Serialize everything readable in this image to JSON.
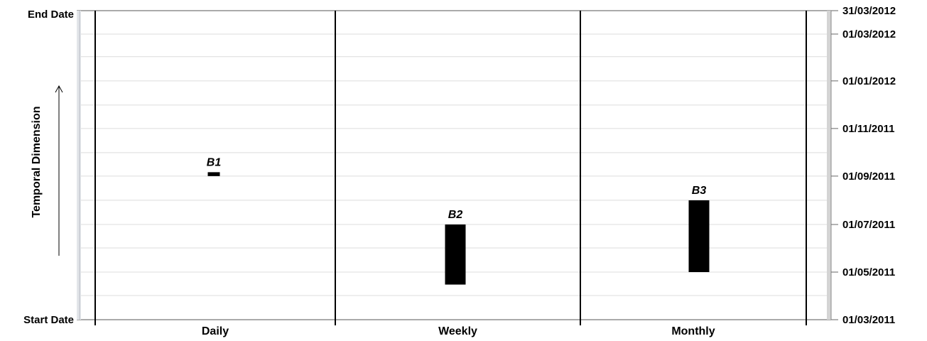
{
  "chart_data": {
    "type": "gantt",
    "title": "",
    "ylabel": "Temporal Dimension",
    "y_start_label": "Start Date",
    "y_end_label": "End Date",
    "ylim": [
      "2011-03-01",
      "2012-03-31"
    ],
    "categories": [
      "Daily",
      "Weekly",
      "Monthly"
    ],
    "y_ticks": [
      {
        "date": "2011-03-01",
        "label": "01/03/2011"
      },
      {
        "date": "2011-05-01",
        "label": "01/05/2011"
      },
      {
        "date": "2011-07-01",
        "label": "01/07/2011"
      },
      {
        "date": "2011-09-01",
        "label": "01/09/2011"
      },
      {
        "date": "2011-11-01",
        "label": "01/11/2011"
      },
      {
        "date": "2012-01-01",
        "label": "01/01/2012"
      },
      {
        "date": "2012-03-01",
        "label": "01/03/2012"
      },
      {
        "date": "2012-03-31",
        "label": "31/03/2012"
      }
    ],
    "bars": [
      {
        "label": "B1",
        "category": "Daily",
        "start": "2011-09-01",
        "end": "2011-09-06"
      },
      {
        "label": "B2",
        "category": "Weekly",
        "start": "2011-04-15",
        "end": "2011-07-01"
      },
      {
        "label": "B3",
        "category": "Monthly",
        "start": "2011-05-01",
        "end": "2011-08-01"
      }
    ],
    "grid": true
  }
}
